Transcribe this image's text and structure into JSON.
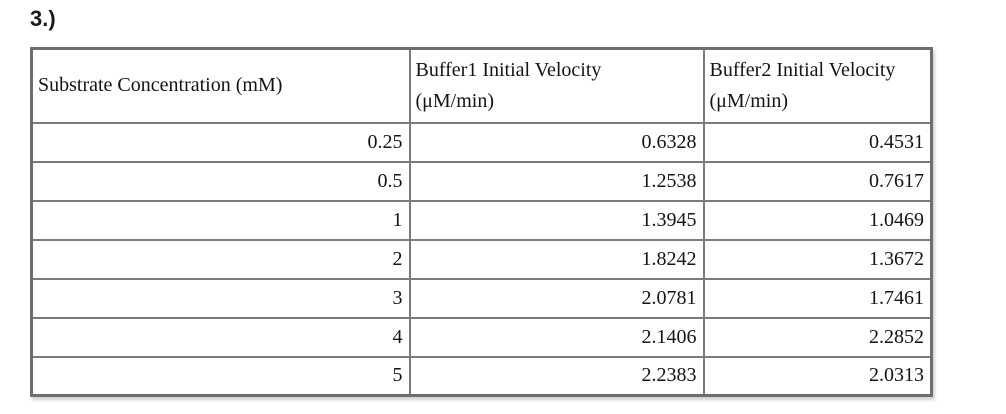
{
  "page": {
    "item_label": "3.)"
  },
  "table": {
    "headers": [
      {
        "line1": "Substrate Concentration (mM)",
        "line2": ""
      },
      {
        "line1": "Buffer1 Initial Velocity",
        "line2": "(μM/min)"
      },
      {
        "line1": "Buffer2 Initial Velocity",
        "line2": "(μM/min)"
      }
    ],
    "rows": [
      [
        "0.25",
        "0.6328",
        "0.4531"
      ],
      [
        "0.5",
        "1.2538",
        "0.7617"
      ],
      [
        "1",
        "1.3945",
        "1.0469"
      ],
      [
        "2",
        "1.8242",
        "1.3672"
      ],
      [
        "3",
        "2.0781",
        "1.7461"
      ],
      [
        "4",
        "2.1406",
        "2.2852"
      ],
      [
        "5",
        "2.2383",
        "2.0313"
      ]
    ]
  },
  "chart_data": {
    "type": "table",
    "columns": [
      "Substrate Concentration (mM)",
      "Buffer1 Initial Velocity (μM/min)",
      "Buffer2 Initial Velocity (μM/min)"
    ],
    "substrate_concentration_mM": [
      0.25,
      0.5,
      1,
      2,
      3,
      4,
      5
    ],
    "buffer1_initial_velocity": [
      0.6328,
      1.2538,
      1.3945,
      1.8242,
      2.0781,
      2.1406,
      2.2383
    ],
    "buffer2_initial_velocity": [
      0.4531,
      0.7617,
      1.0469,
      1.3672,
      1.7461,
      2.2852,
      2.0313
    ]
  }
}
